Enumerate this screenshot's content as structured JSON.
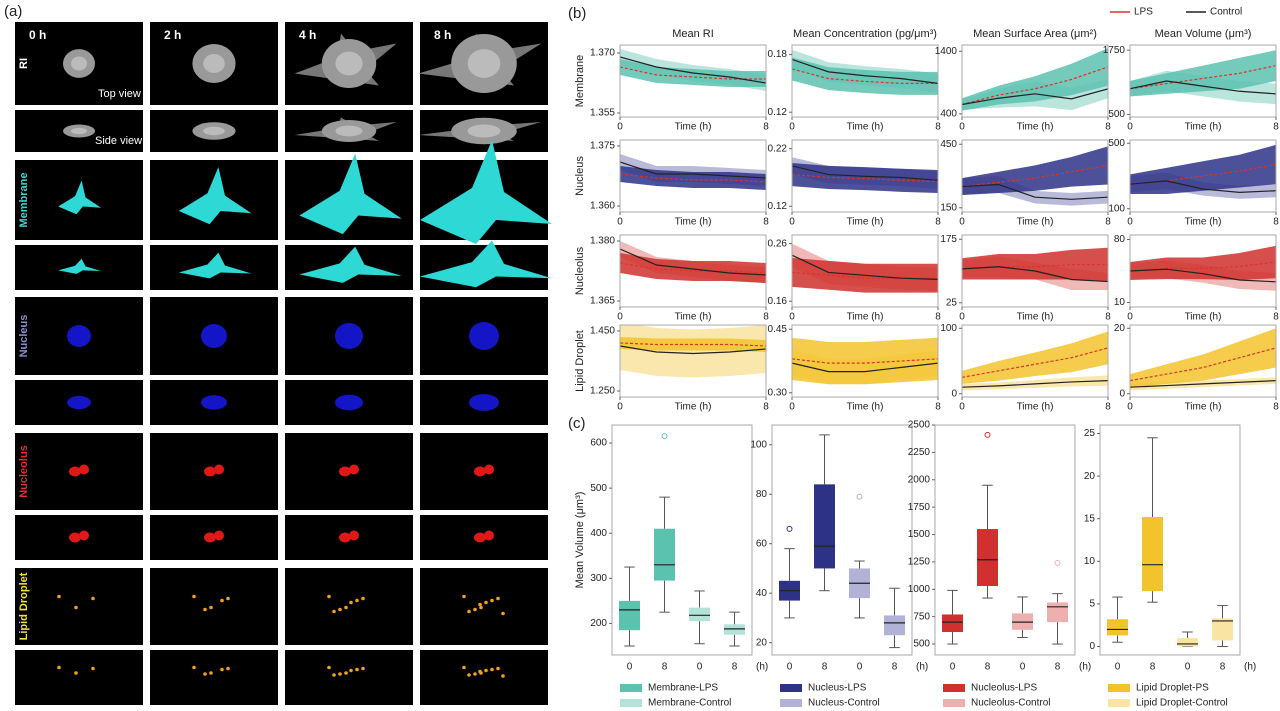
{
  "panel_a": {
    "label": "(a)",
    "times": [
      "0 h",
      "2 h",
      "4 h",
      "8 h"
    ],
    "rows": [
      {
        "name": "RI",
        "color": "#ffffff"
      },
      {
        "name": "Membrane",
        "color": "#40d4d4"
      },
      {
        "name": "Nucleus",
        "color": "#8a8ed0"
      },
      {
        "name": "Nucleolus",
        "color": "#e03030"
      },
      {
        "name": "Lipid Droplet",
        "color": "#f0e040"
      }
    ],
    "annotations": [
      "Top view",
      "Side view"
    ]
  },
  "panel_b": {
    "label": "(b)",
    "legend": [
      {
        "name": "LPS",
        "color": "#d9342b"
      },
      {
        "name": "Control",
        "color": "#222222"
      }
    ],
    "columns": [
      "Mean RI",
      "Mean Concentration (pg/μm³)",
      "Mean Surface Area (μm²)",
      "Mean Volume (μm³)"
    ],
    "rows": [
      {
        "name": "Membrane",
        "color": "#5cc2b0",
        "light": "#b3e2d9"
      },
      {
        "name": "Nucleus",
        "color": "#2e3287",
        "light": "#b1b2d6"
      },
      {
        "name": "Nucleolus",
        "color": "#d0302e",
        "light": "#eeb0ae"
      },
      {
        "name": "Lipid Droplet",
        "color": "#f3c32c",
        "light": "#f9e4a4"
      }
    ],
    "x_label": "Time (h)",
    "x": [
      0,
      2,
      4,
      6,
      8
    ],
    "xlim": [
      0,
      8
    ],
    "xticks": [
      0,
      8
    ],
    "plots": [
      {
        "ylim": [
          1.354,
          1.372
        ],
        "yticks": [
          {
            "value": 1.355,
            "label": "1.355"
          },
          {
            "value": 1.37,
            "label": "1.370"
          }
        ],
        "series": [
          {
            "values": [
              1.3665,
              1.3645,
              1.364,
              1.3635,
              1.3635
            ],
            "spread": [
              0.002,
              0.002,
              0.002,
              0.002,
              0.002
            ]
          },
          {
            "values": [
              1.369,
              1.3665,
              1.365,
              1.364,
              1.3625
            ],
            "spread": [
              0.002,
              0.002,
              0.002,
              0.002,
              0.002
            ]
          }
        ]
      },
      {
        "ylim": [
          0.115,
          0.19
        ],
        "yticks": [
          0.12,
          0.18
        ],
        "series": [
          {
            "values": [
              0.165,
              0.155,
              0.152,
              0.15,
              0.15
            ],
            "spread": [
              0.012,
              0.012,
              0.012,
              0.012,
              0.012
            ]
          },
          {
            "values": [
              0.175,
              0.162,
              0.158,
              0.155,
              0.15
            ],
            "spread": [
              0.01,
              0.01,
              0.01,
              0.01,
              0.01
            ]
          }
        ]
      },
      {
        "ylim": [
          350,
          1500
        ],
        "yticks": [
          400,
          1400
        ],
        "series": [
          {
            "values": [
              550,
              700,
              800,
              950,
              1150
            ],
            "spread": [
              100,
              150,
              200,
              250,
              300
            ]
          },
          {
            "values": [
              550,
              650,
              720,
              640,
              800
            ],
            "spread": [
              80,
              150,
              200,
              180,
              150
            ]
          }
        ]
      },
      {
        "ylim": [
          450,
          1850
        ],
        "yticks": [
          500,
          1750
        ],
        "series": [
          {
            "values": [
              1000,
              1100,
              1200,
              1300,
              1450
            ],
            "spread": [
              150,
              200,
              250,
              300,
              300
            ]
          },
          {
            "values": [
              1000,
              1150,
              1050,
              950,
              900
            ],
            "spread": [
              150,
              200,
              200,
              200,
              200
            ]
          }
        ]
      },
      {
        "ylim": [
          1.3585,
          1.3765
        ],
        "yticks": [
          {
            "value": 1.36,
            "label": "1.360"
          },
          {
            "value": 1.375,
            "label": "1.375"
          }
        ],
        "series": [
          {
            "values": [
              1.368,
              1.367,
              1.3665,
              1.3665,
              1.366
            ],
            "spread": [
              0.002,
              0.002,
              0.002,
              0.002,
              0.002
            ]
          },
          {
            "values": [
              1.371,
              1.368,
              1.368,
              1.3675,
              1.367
            ],
            "spread": [
              0.002,
              0.002,
              0.002,
              0.002,
              0.002
            ]
          }
        ]
      },
      {
        "ylim": [
          0.11,
          0.235
        ],
        "yticks": [
          0.12,
          0.22
        ],
        "series": [
          {
            "values": [
              0.175,
              0.17,
              0.168,
              0.165,
              0.163
            ],
            "spread": [
              0.02,
              0.02,
              0.02,
              0.02,
              0.02
            ]
          },
          {
            "values": [
              0.19,
              0.175,
              0.172,
              0.17,
              0.165
            ],
            "spread": [
              0.015,
              0.015,
              0.015,
              0.015,
              0.015
            ]
          }
        ]
      },
      {
        "ylim": [
          130,
          470
        ],
        "yticks": [
          150,
          450
        ],
        "series": [
          {
            "values": [
              250,
              270,
              290,
              320,
              350
            ],
            "spread": [
              40,
              50,
              60,
              70,
              90
            ]
          },
          {
            "values": [
              250,
              260,
              200,
              190,
              200
            ],
            "spread": [
              40,
              40,
              30,
              30,
              30
            ]
          }
        ]
      },
      {
        "ylim": [
          80,
          520
        ],
        "yticks": [
          100,
          500
        ],
        "series": [
          {
            "values": [
              250,
              270,
              300,
              330,
              370
            ],
            "spread": [
              60,
              80,
              90,
              100,
              120
            ]
          },
          {
            "values": [
              250,
              270,
              220,
              200,
              210
            ],
            "spread": [
              50,
              50,
              40,
              40,
              40
            ]
          }
        ]
      },
      {
        "ylim": [
          1.3635,
          1.3815
        ],
        "yticks": [
          {
            "value": 1.365,
            "label": "1.365"
          },
          {
            "value": 1.38,
            "label": "1.380"
          }
        ],
        "series": [
          {
            "values": [
              1.3745,
              1.373,
              1.3725,
              1.3725,
              1.372
            ],
            "spread": [
              0.0025,
              0.0025,
              0.0025,
              0.0025,
              0.0025
            ]
          },
          {
            "values": [
              1.378,
              1.374,
              1.373,
              1.372,
              1.3715
            ],
            "spread": [
              0.002,
              0.002,
              0.002,
              0.002,
              0.002
            ]
          }
        ]
      },
      {
        "ylim": [
          0.15,
          0.275
        ],
        "yticks": [
          0.16,
          0.26
        ],
        "series": [
          {
            "values": [
              0.21,
              0.205,
              0.2,
              0.2,
              0.2
            ],
            "spread": [
              0.025,
              0.025,
              0.025,
              0.025,
              0.025
            ]
          },
          {
            "values": [
              0.24,
              0.21,
              0.205,
              0.2,
              0.198
            ],
            "spread": [
              0.02,
              0.02,
              0.02,
              0.02,
              0.02
            ]
          }
        ]
      },
      {
        "ylim": [
          15,
          185
        ],
        "yticks": [
          25,
          175
        ],
        "series": [
          {
            "values": [
              105,
              110,
              110,
              115,
              115
            ],
            "spread": [
              25,
              30,
              30,
              35,
              40
            ]
          },
          {
            "values": [
              105,
              110,
              100,
              80,
              75
            ],
            "spread": [
              20,
              25,
              20,
              25,
              20
            ]
          }
        ]
      },
      {
        "ylim": [
          5,
          85
        ],
        "yticks": [
          10,
          80
        ],
        "series": [
          {
            "values": [
              45,
              48,
              48,
              50,
              55
            ],
            "spread": [
              10,
              12,
              12,
              15,
              18
            ]
          },
          {
            "values": [
              45,
              47,
              42,
              35,
              33
            ],
            "spread": [
              8,
              10,
              10,
              10,
              10
            ]
          }
        ]
      },
      {
        "ylim": [
          1.23,
          1.47
        ],
        "yticks": [
          {
            "value": 1.25,
            "label": "1.250"
          },
          {
            "value": 1.45,
            "label": "1.450"
          }
        ],
        "series": [
          {
            "values": [
              1.41,
              1.405,
              1.405,
              1.405,
              1.4
            ],
            "spread": [
              0.02,
              0.02,
              0.02,
              0.02,
              0.02
            ]
          },
          {
            "values": [
              1.4,
              1.38,
              1.375,
              1.38,
              1.39
            ],
            "spread": [
              0.08,
              0.08,
              0.08,
              0.08,
              0.08
            ]
          }
        ]
      },
      {
        "ylim": [
          0.29,
          0.46
        ],
        "yticks": [
          {
            "value": 0.3,
            "label": "0.30"
          },
          0.45
        ],
        "series": [
          {
            "values": [
              0.38,
              0.37,
              0.37,
              0.375,
              0.38
            ],
            "spread": [
              0.05,
              0.05,
              0.05,
              0.05,
              0.05
            ]
          },
          {
            "values": [
              0.37,
              0.35,
              0.35,
              0.36,
              0.37
            ],
            "spread": [
              0.03,
              0.03,
              0.03,
              0.03,
              0.03
            ]
          }
        ]
      },
      {
        "ylim": [
          -5,
          105
        ],
        "yticks": [
          0,
          100
        ],
        "series": [
          {
            "values": [
              25,
              35,
              45,
              55,
              70
            ],
            "spread": [
              10,
              15,
              18,
              22,
              25
            ]
          },
          {
            "values": [
              10,
              12,
              15,
              18,
              20
            ],
            "spread": [
              5,
              5,
              6,
              7,
              8
            ]
          }
        ]
      },
      {
        "ylim": [
          -1,
          21
        ],
        "yticks": [
          0,
          20
        ],
        "series": [
          {
            "values": [
              4,
              6,
              8,
              11,
              14
            ],
            "spread": [
              2,
              3,
              4,
              5,
              6
            ]
          },
          {
            "values": [
              2,
              2.5,
              3,
              3.5,
              4
            ],
            "spread": [
              1,
              1,
              1,
              1,
              1
            ]
          }
        ]
      }
    ]
  },
  "panel_c": {
    "label": "(c)",
    "y_label": "Mean Volume (μm³)",
    "x_unit": "(h)",
    "categories": [
      "0",
      "8",
      "0",
      "8"
    ],
    "plots": [
      {
        "ylim": [
          130,
          640
        ],
        "yticks": [
          200,
          300,
          400,
          500,
          600
        ],
        "colors": [
          "#5cc2b0",
          "#b3e2d9"
        ],
        "legend": [
          "Membrane-LPS",
          "Membrane-Control"
        ],
        "boxes": [
          {
            "min": 150,
            "q1": 185,
            "median": 230,
            "q3": 250,
            "max": 325,
            "outliers": []
          },
          {
            "min": 225,
            "q1": 295,
            "median": 330,
            "q3": 410,
            "max": 480,
            "outliers": [
              615
            ]
          },
          {
            "min": 155,
            "q1": 205,
            "median": 218,
            "q3": 235,
            "max": 272,
            "outliers": []
          },
          {
            "min": 150,
            "q1": 175,
            "median": 188,
            "q3": 198,
            "max": 225,
            "outliers": []
          }
        ]
      },
      {
        "ylim": [
          15,
          108
        ],
        "yticks": [
          20,
          40,
          60,
          80,
          100
        ],
        "colors": [
          "#2e3287",
          "#b1b2d6"
        ],
        "legend": [
          "Nucleus-LPS",
          "Nucleus-Control"
        ],
        "boxes": [
          {
            "min": 30,
            "q1": 37,
            "median": 41,
            "q3": 45,
            "max": 58,
            "outliers": [
              66
            ]
          },
          {
            "min": 41,
            "q1": 50,
            "median": 59,
            "q3": 84,
            "max": 104,
            "outliers": []
          },
          {
            "min": 30,
            "q1": 38,
            "median": 44,
            "q3": 50,
            "max": 53,
            "outliers": [
              79
            ]
          },
          {
            "min": 18,
            "q1": 23,
            "median": 28,
            "q3": 31,
            "max": 42,
            "outliers": []
          }
        ]
      },
      {
        "ylim": [
          400,
          2500
        ],
        "yticks": [
          500,
          750,
          1000,
          1250,
          1500,
          1750,
          2000,
          2250,
          2500
        ],
        "colors": [
          "#d0302e",
          "#eeb0ae"
        ],
        "legend": [
          "Nucleolus-LPS",
          "Nucleolus-Control"
        ],
        "boxes": [
          {
            "min": 500,
            "q1": 610,
            "median": 700,
            "q3": 770,
            "max": 990,
            "outliers": []
          },
          {
            "min": 920,
            "q1": 1030,
            "median": 1270,
            "q3": 1550,
            "max": 1950,
            "outliers": [
              2410
            ]
          },
          {
            "min": 560,
            "q1": 630,
            "median": 700,
            "q3": 780,
            "max": 930,
            "outliers": []
          },
          {
            "min": 500,
            "q1": 700,
            "median": 840,
            "q3": 880,
            "max": 960,
            "outliers": [
              1240
            ]
          }
        ]
      },
      {
        "ylim": [
          -1,
          26
        ],
        "yticks": [
          0,
          5,
          10,
          15,
          20,
          25
        ],
        "colors": [
          "#f3c32c",
          "#f9e4a4"
        ],
        "legend": [
          "Lipid Droplet-PS",
          "Lipid Droplet-Control"
        ],
        "boxes": [
          {
            "min": 0.5,
            "q1": 1.3,
            "median": 2,
            "q3": 3.2,
            "max": 5.8,
            "outliers": []
          },
          {
            "min": 5.2,
            "q1": 6.5,
            "median": 9.6,
            "q3": 15.2,
            "max": 24.5,
            "outliers": []
          },
          {
            "min": 0,
            "q1": 0,
            "median": 0.3,
            "q3": 1,
            "max": 1.7,
            "outliers": []
          },
          {
            "min": 0,
            "q1": 0.7,
            "median": 3,
            "q3": 3.3,
            "max": 4.8,
            "outliers": []
          }
        ]
      }
    ]
  }
}
